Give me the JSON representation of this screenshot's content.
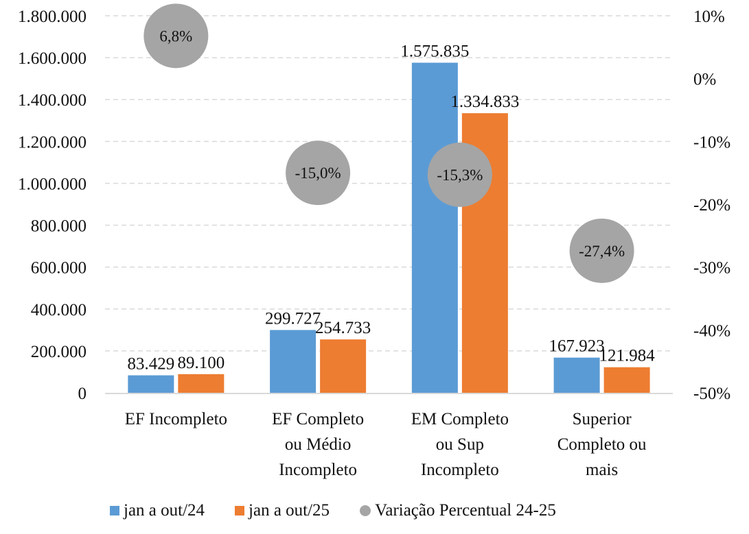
{
  "chart_data": {
    "type": "bar",
    "title": "",
    "xlabel": "",
    "ylabel": "",
    "categories": [
      [
        "EF Incompleto"
      ],
      [
        "EF Completo",
        "ou Médio",
        "Incompleto"
      ],
      [
        "EM Completo",
        "ou Sup",
        "Incompleto"
      ],
      [
        "Superior",
        "Completo ou",
        "mais"
      ]
    ],
    "series": [
      {
        "name": "jan a out/24",
        "color": "#5B9BD5",
        "values": [
          83429,
          299727,
          1575835,
          167923
        ],
        "labels": [
          "83.429",
          "299.727",
          "1.575.835",
          "167.923"
        ]
      },
      {
        "name": "jan a out/25",
        "color": "#ED7D31",
        "values": [
          89100,
          254733,
          1334833,
          121984
        ],
        "labels": [
          "89.100",
          "254.733",
          "1.334.833",
          "121.984"
        ]
      }
    ],
    "secondary_series": {
      "name": "Variação Percentual 24-25",
      "type": "scatter",
      "axis": "right",
      "color": "#A5A5A5",
      "values": [
        6.8,
        -15.0,
        -15.3,
        -27.4
      ],
      "labels": [
        "6,8%",
        "-15,0%",
        "-15,3%",
        "-27,4%"
      ]
    },
    "ylim": [
      0,
      1800000
    ],
    "yticks": [
      0,
      200000,
      400000,
      600000,
      800000,
      1000000,
      1200000,
      1400000,
      1600000,
      1800000
    ],
    "ytick_labels": [
      "0",
      "200.000",
      "400.000",
      "600.000",
      "800.000",
      "1.000.000",
      "1.200.000",
      "1.400.000",
      "1.600.000",
      "1.800.000"
    ],
    "y2lim": [
      -50,
      10
    ],
    "y2ticks": [
      -50,
      -40,
      -30,
      -20,
      -10,
      0,
      10
    ],
    "y2tick_labels": [
      "-50%",
      "-40%",
      "-30%",
      "-20%",
      "-10%",
      "0%",
      "10%"
    ],
    "grid": true,
    "legend_position": "bottom"
  }
}
